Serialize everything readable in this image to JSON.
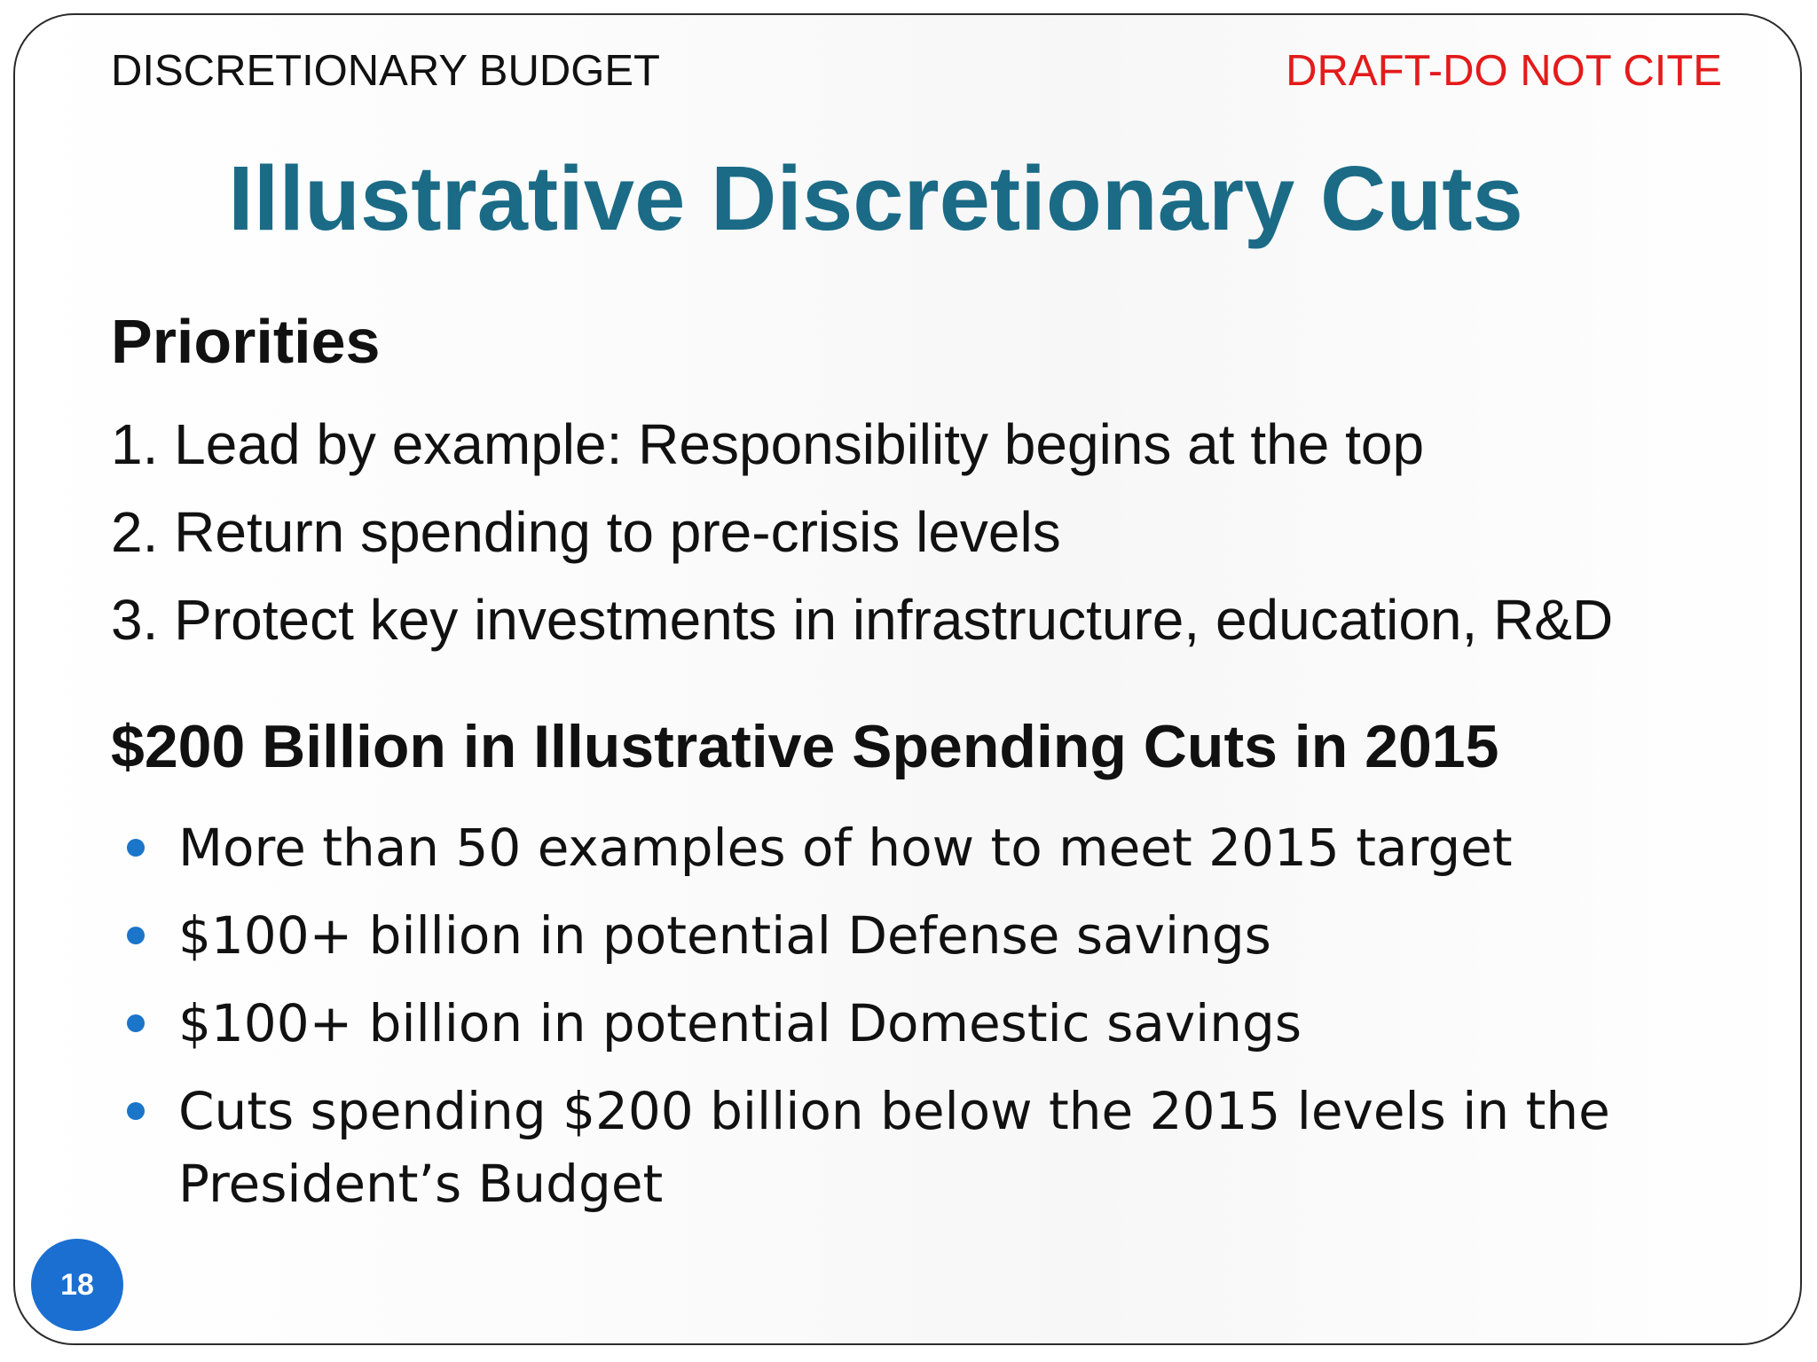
{
  "header": {
    "section": "DISCRETIONARY BUDGET",
    "status": "DRAFT-DO NOT CITE"
  },
  "title": "Illustrative Discretionary Cuts",
  "priorities": {
    "heading": "Priorities",
    "items": [
      "1. Lead by example: Responsibility begins at the top",
      "2. Return spending to pre-crisis levels",
      "3. Protect key investments in infrastructure, education, R&D"
    ]
  },
  "cuts": {
    "heading": "$200 Billion in Illustrative Spending Cuts in 2015",
    "bullets": [
      "More than 50 examples of how to meet 2015 target",
      "$100+ billion in potential Defense savings",
      "$100+ billion in potential Domestic savings",
      "Cuts spending $200 billion below the 2015 levels in the President’s Budget"
    ]
  },
  "page_number": "18",
  "colors": {
    "title": "#1b6b86",
    "draft_label": "#e31b1b",
    "bullet": "#1b75c9",
    "page_badge": "#1a6fd1"
  }
}
